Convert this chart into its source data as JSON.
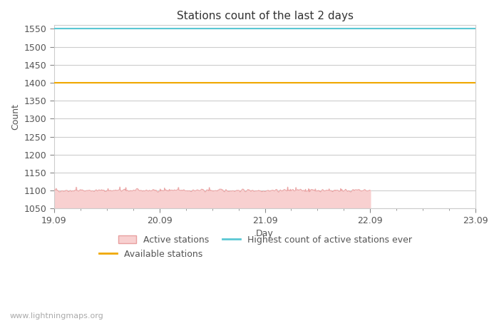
{
  "title": "Stations count of the last 2 days",
  "xlabel": "Day",
  "ylabel": "Count",
  "ylim": [
    1050,
    1560
  ],
  "yticks": [
    1050,
    1100,
    1150,
    1200,
    1250,
    1300,
    1350,
    1400,
    1450,
    1500,
    1550
  ],
  "x_start": 0,
  "x_end": 4,
  "xtick_positions": [
    0,
    1,
    2,
    3,
    4
  ],
  "xtick_labels": [
    "19.09",
    "20.09",
    "21.09",
    "22.09",
    "23.09"
  ],
  "highest_count_value": 1550,
  "available_stations_value": 1400,
  "active_stations_base": 1050,
  "active_stations_mean": 1100,
  "active_stations_noise": 4,
  "active_stations_x_end": 3.0,
  "highest_color": "#5bc8d4",
  "available_color": "#f0a800",
  "active_fill_color": "#f8d0d0",
  "active_line_color": "#e8a0a0",
  "background_color": "#ffffff",
  "grid_color": "#cccccc",
  "title_fontsize": 11,
  "axis_label_fontsize": 9,
  "tick_fontsize": 9,
  "watermark": "www.lightningmaps.org",
  "watermark_fontsize": 8
}
